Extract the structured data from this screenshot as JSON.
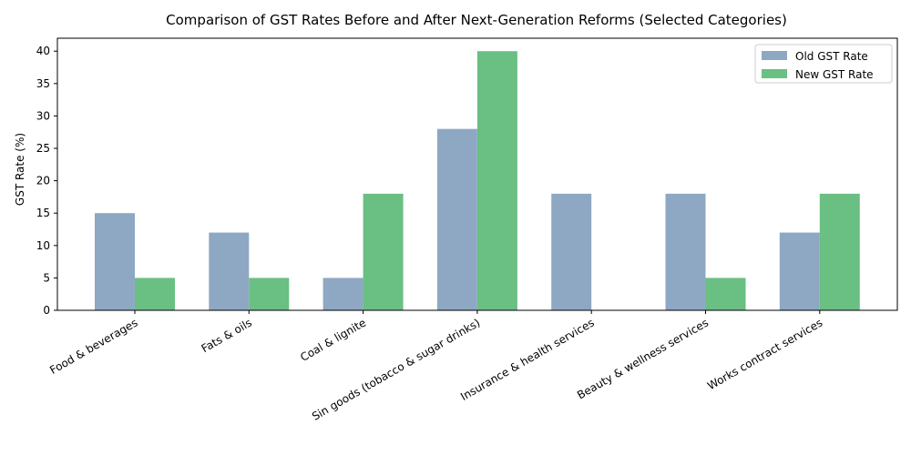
{
  "chart_data": {
    "type": "bar",
    "title": "Comparison of GST Rates Before and After Next-Generation Reforms (Selected Categories)",
    "xlabel": "",
    "ylabel": "GST Rate (%)",
    "ylim": [
      0,
      42
    ],
    "yticks": [
      0,
      5,
      10,
      15,
      20,
      25,
      30,
      35,
      40
    ],
    "grid": false,
    "legend_position": "top-right",
    "categories": [
      "Food & beverages",
      "Fats & oils",
      "Coal & lignite",
      "Sin goods (tobacco & sugar drinks)",
      "Insurance & health services",
      "Beauty & wellness services",
      "Works contract services"
    ],
    "series": [
      {
        "name": "Old GST Rate",
        "color": "#8ea8c3",
        "values": [
          15,
          12,
          5,
          28,
          18,
          18,
          12
        ]
      },
      {
        "name": "New GST Rate",
        "color": "#6abf83",
        "values": [
          5,
          5,
          18,
          40,
          0,
          5,
          18
        ]
      }
    ]
  }
}
